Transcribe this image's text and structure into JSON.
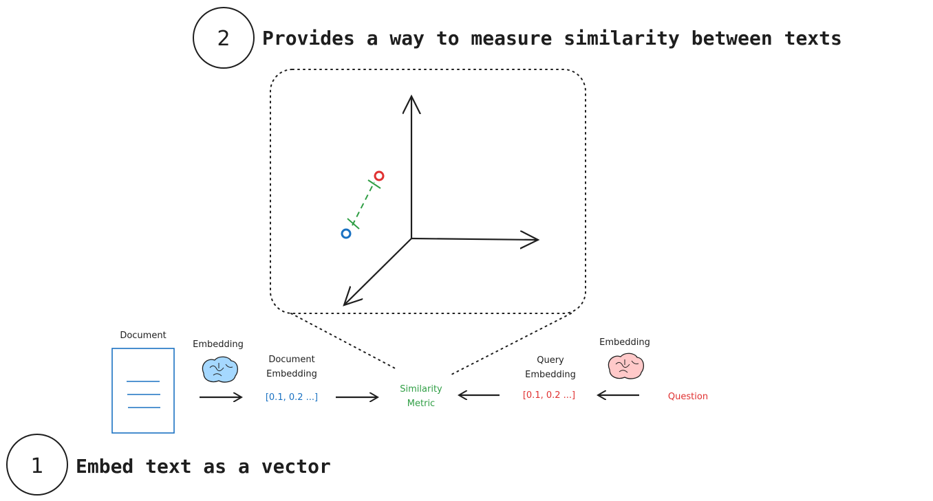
{
  "steps": [
    {
      "number": "1",
      "text": "Embed text as a vector"
    },
    {
      "number": "2",
      "text": "Provides a way to measure similarity between texts"
    }
  ],
  "labels": {
    "document": "Document",
    "embedding_left": "Embedding",
    "document_embedding_line1": "Document",
    "document_embedding_line2": "Embedding",
    "document_vector": "[0.1, 0.2 ...]",
    "similarity_line1": "Similarity",
    "similarity_line2": "Metric",
    "query_embedding_line1": "Query",
    "query_embedding_line2": "Embedding",
    "query_vector": "[0.1, 0.2 ...]",
    "embedding_right": "Embedding",
    "question": "Question"
  },
  "colors": {
    "document": "#1971c2",
    "query": "#e03131",
    "similarity": "#2f9e44",
    "brain_left": "#a5d8ff",
    "brain_right": "#ffc9c9"
  },
  "icons": [
    "document-icon",
    "brain-icon",
    "arrow-icon",
    "3d-axes-icon"
  ]
}
